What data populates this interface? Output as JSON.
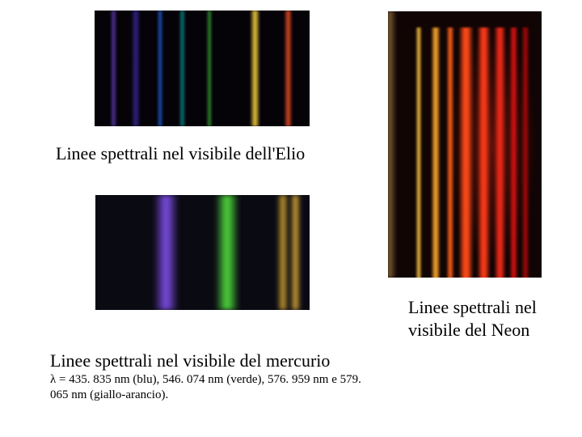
{
  "helium": {
    "caption": "Linee spettrali nel visibile dell'Elio",
    "background": "#050208",
    "lines": [
      {
        "left_pct": 7,
        "width_pct": 3.5,
        "color": "#4a2e8a"
      },
      {
        "left_pct": 17,
        "width_pct": 4.5,
        "color": "#2e1f7a"
      },
      {
        "left_pct": 29,
        "width_pct": 3,
        "color": "#1a4aa8"
      },
      {
        "left_pct": 39,
        "width_pct": 3.5,
        "color": "#0a6a6a"
      },
      {
        "left_pct": 52,
        "width_pct": 3,
        "color": "#2a7a2a"
      },
      {
        "left_pct": 72,
        "width_pct": 5,
        "color": "#d8b838"
      },
      {
        "left_pct": 88,
        "width_pct": 4,
        "color": "#c84220"
      }
    ]
  },
  "mercury": {
    "caption_title": "Linee spettrali nel visibile del mercurio",
    "caption_detail": "λ = 435. 835 nm (blu), 546. 074 nm (verde), 576. 959 nm e 579. 065 nm (giallo-arancio).",
    "background": "#0a0a12",
    "lines": [
      {
        "left_pct": 27,
        "width_pct": 12,
        "color": "#7548d8"
      },
      {
        "left_pct": 56,
        "width_pct": 11,
        "color": "#4acc3a"
      },
      {
        "left_pct": 85,
        "width_pct": 5,
        "color": "#c89a30"
      },
      {
        "left_pct": 91,
        "width_pct": 5,
        "color": "#d8a838"
      }
    ]
  },
  "neon": {
    "caption": "Linee spettrali nel visibile del Neon",
    "background": "#100404",
    "left_border_color": "#8a6838",
    "lines": [
      {
        "left_pct": 18,
        "width_pct": 4,
        "color": "#d8a838"
      },
      {
        "left_pct": 28,
        "width_pct": 6,
        "color": "#e89828"
      },
      {
        "left_pct": 38,
        "width_pct": 5,
        "color": "#e85818"
      },
      {
        "left_pct": 46,
        "width_pct": 10,
        "color": "#f84818"
      },
      {
        "left_pct": 58,
        "width_pct": 9,
        "color": "#f53818"
      },
      {
        "left_pct": 69,
        "width_pct": 8,
        "color": "#e82818"
      },
      {
        "left_pct": 79,
        "width_pct": 6,
        "color": "#c81010"
      },
      {
        "left_pct": 87,
        "width_pct": 5,
        "color": "#980808"
      }
    ]
  }
}
